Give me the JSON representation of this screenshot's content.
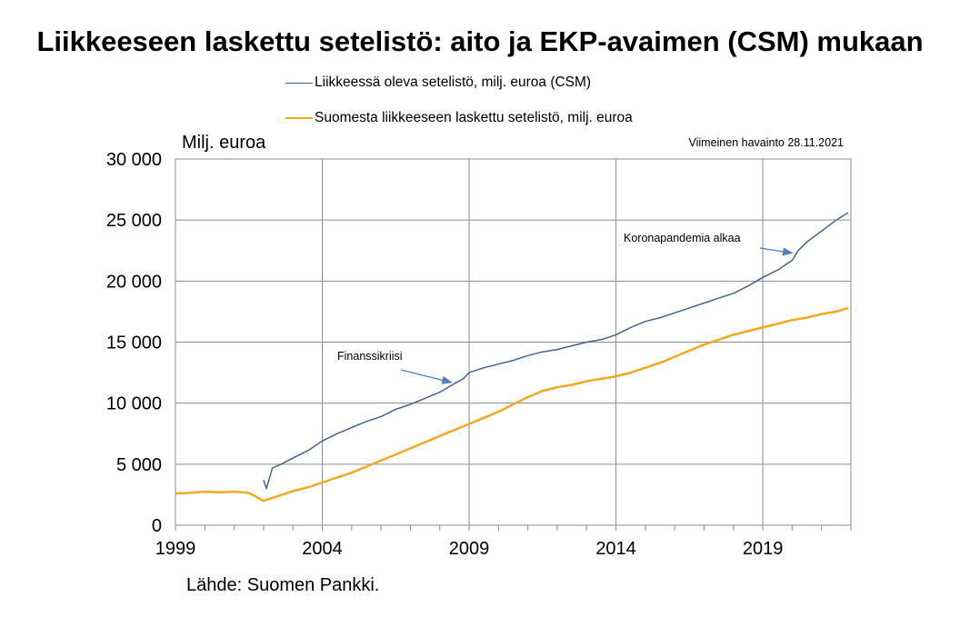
{
  "title": "Liikkeeseen laskettu setelistö: aito ja EKP-avaimen (CSM) mukaan",
  "y_unit": "Milj. euroa",
  "note": "Viimeinen havainto 28.11.2021",
  "source": "Lähde: Suomen Pankki.",
  "colors": {
    "csm": "#44658e",
    "finland": "#f6a821",
    "grid": "#8c8c8c"
  },
  "chart_data": {
    "type": "line",
    "title": "Liikkeeseen laskettu setelistö: aito ja EKP-avaimen (CSM) mukaan",
    "ylabel": "Milj. euroa",
    "xlabel": "",
    "xlim": [
      1999,
      2022
    ],
    "ylim": [
      0,
      30000
    ],
    "y_ticks": [
      0,
      5000,
      10000,
      15000,
      20000,
      25000,
      30000
    ],
    "y_tick_labels": [
      "0",
      "5 000",
      "10 000",
      "15 000",
      "20 000",
      "25 000",
      "30 000"
    ],
    "x_ticks": [
      1999,
      2004,
      2009,
      2014,
      2019
    ],
    "x_tick_labels": [
      "1999",
      "2004",
      "2009",
      "2014",
      "2019"
    ],
    "grid": true,
    "legend_position": "top",
    "series": [
      {
        "name": "Liikkeessä oleva setelistö, milj. euroa (CSM)",
        "color": "#44658e",
        "x": [
          2002.0,
          2002.1,
          2002.3,
          2002.6,
          2003.0,
          2003.5,
          2004.0,
          2004.5,
          2005.0,
          2005.5,
          2006.0,
          2006.5,
          2007.0,
          2007.5,
          2008.0,
          2008.5,
          2008.8,
          2009.0,
          2009.5,
          2010.0,
          2010.5,
          2011.0,
          2011.5,
          2012.0,
          2012.5,
          2013.0,
          2013.5,
          2014.0,
          2014.5,
          2015.0,
          2015.5,
          2016.0,
          2016.5,
          2017.0,
          2017.5,
          2018.0,
          2018.5,
          2019.0,
          2019.5,
          2020.0,
          2020.2,
          2020.5,
          2021.0,
          2021.5,
          2021.9
        ],
        "values": [
          3700,
          3000,
          4700,
          5000,
          5500,
          6100,
          6900,
          7500,
          8000,
          8500,
          8900,
          9500,
          9900,
          10400,
          10900,
          11600,
          12000,
          12500,
          12900,
          13200,
          13500,
          13900,
          14200,
          14400,
          14700,
          15000,
          15200,
          15600,
          16200,
          16700,
          17000,
          17400,
          17800,
          18200,
          18600,
          19000,
          19600,
          20300,
          20900,
          21700,
          22500,
          23200,
          24100,
          25000,
          25600
        ]
      },
      {
        "name": "Suomesta liikkeeseen laskettu setelistö, milj. euroa",
        "color": "#f6a821",
        "x": [
          1999.0,
          1999.5,
          2000.0,
          2000.5,
          2001.0,
          2001.5,
          2002.0,
          2002.5,
          2003.0,
          2003.5,
          2004.0,
          2004.5,
          2005.0,
          2005.5,
          2006.0,
          2006.5,
          2007.0,
          2007.5,
          2008.0,
          2008.5,
          2009.0,
          2009.5,
          2010.0,
          2010.5,
          2011.0,
          2011.5,
          2012.0,
          2012.5,
          2013.0,
          2013.5,
          2014.0,
          2014.5,
          2015.0,
          2015.5,
          2016.0,
          2016.5,
          2017.0,
          2017.5,
          2018.0,
          2018.5,
          2019.0,
          2019.5,
          2020.0,
          2020.5,
          2021.0,
          2021.5,
          2021.9
        ],
        "values": [
          2600,
          2650,
          2750,
          2700,
          2750,
          2650,
          2000,
          2400,
          2800,
          3100,
          3500,
          3900,
          4300,
          4800,
          5300,
          5800,
          6300,
          6800,
          7300,
          7800,
          8300,
          8800,
          9300,
          9900,
          10500,
          11000,
          11300,
          11500,
          11800,
          12000,
          12200,
          12500,
          12900,
          13300,
          13800,
          14300,
          14800,
          15200,
          15600,
          15900,
          16200,
          16500,
          16800,
          17000,
          17300,
          17500,
          17800
        ]
      }
    ],
    "annotations": [
      {
        "text": "Finanssikriisi",
        "x": 2008.4,
        "y": 11700
      },
      {
        "text": "Koronapandemia alkaa",
        "x": 2020.0,
        "y": 22300
      }
    ]
  }
}
